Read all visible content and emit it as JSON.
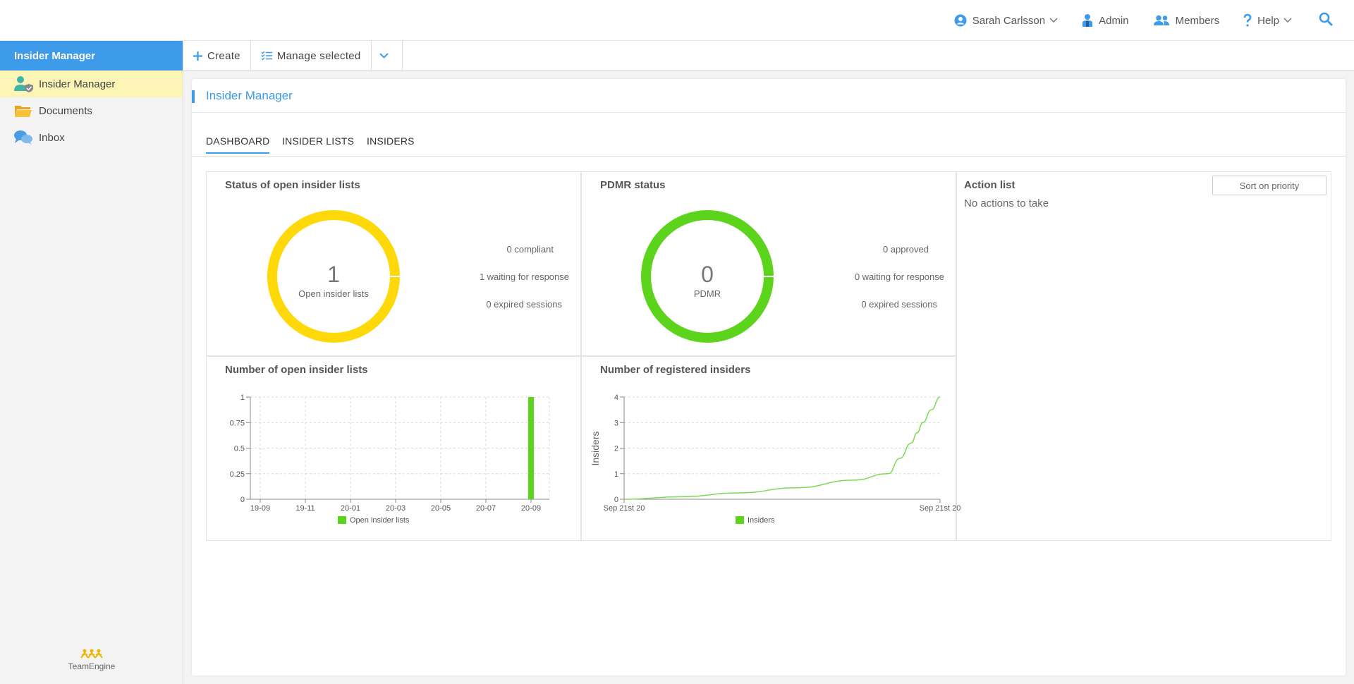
{
  "topnav": {
    "user": "Sarah Carlsson",
    "admin": "Admin",
    "members": "Members",
    "help": "Help"
  },
  "sidebar": {
    "header": "Insider Manager",
    "items": [
      {
        "label": "Insider Manager",
        "icon": "insider-manager-icon"
      },
      {
        "label": "Documents",
        "icon": "folder-icon"
      },
      {
        "label": "Inbox",
        "icon": "chat-bubbles-icon"
      }
    ],
    "logo_text": "TeamEngine"
  },
  "toolbar": {
    "create": "Create",
    "manage_selected": "Manage selected"
  },
  "page": {
    "title": "Insider Manager",
    "tabs": [
      "DASHBOARD",
      "INSIDER LISTS",
      "INSIDERS"
    ]
  },
  "dashboard": {
    "open_lists": {
      "title": "Status of open insider lists",
      "count": "1",
      "label": "Open insider lists",
      "stats": [
        "0 compliant",
        "1 waiting for response",
        "0 expired sessions"
      ],
      "color": "#ffd80a"
    },
    "pdmr": {
      "title": "PDMR status",
      "count": "0",
      "label": "PDMR",
      "stats": [
        "0 approved",
        "0 waiting for response",
        "0 expired sessions"
      ],
      "color": "#5cd41b"
    },
    "action_list": {
      "title": "Action list",
      "sort_button": "Sort on priority",
      "empty_text": "No actions to take"
    }
  },
  "chart_data": [
    {
      "type": "bar",
      "title": "Number of open insider lists",
      "categories": [
        "19-09",
        "19-11",
        "20-01",
        "20-03",
        "20-05",
        "20-07",
        "20-09"
      ],
      "yticks": [
        "0",
        "0.25",
        "0.5",
        "0.75",
        "1"
      ],
      "ylim": [
        0,
        1
      ],
      "series": [
        {
          "name": "Open insider lists",
          "color": "#5cd41b",
          "points": [
            {
              "x": "20-09",
              "y": 1
            }
          ]
        }
      ],
      "grid": true,
      "legend": "bottom"
    },
    {
      "type": "line",
      "title": "Number of registered insiders",
      "ylabel": "Insiders",
      "xticks": [
        "Sep 21st 20",
        "Sep 21st 20"
      ],
      "yticks": [
        "0",
        "1",
        "2",
        "3",
        "4"
      ],
      "ylim": [
        0,
        4
      ],
      "series": [
        {
          "name": "Insiders",
          "color": "#7ed957",
          "x": [
            0,
            0.2,
            0.4,
            0.6,
            0.8,
            0.92,
            0.96,
            1.0,
            1.02,
            1.04,
            1.07,
            1.1
          ],
          "y": [
            0,
            0.1,
            0.25,
            0.45,
            0.75,
            1.0,
            1.6,
            2.2,
            2.6,
            3.0,
            3.5,
            4.0
          ]
        }
      ],
      "grid": true,
      "legend": "bottom"
    }
  ]
}
